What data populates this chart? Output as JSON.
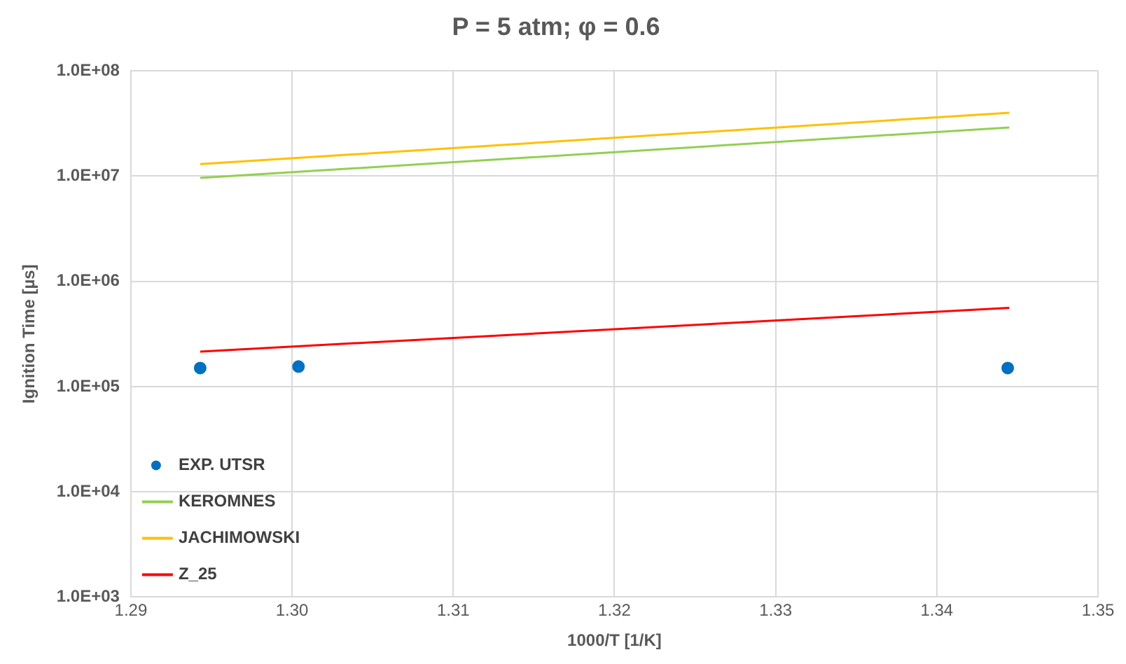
{
  "chart_data": {
    "type": "line",
    "title": "P = 5 atm; φ = 0.6",
    "xlabel": "1000/T [1/K]",
    "ylabel": "Ignition Time [µs]",
    "xlim": [
      1.29,
      1.35
    ],
    "xticks": [
      {
        "value": 1.29,
        "label": "1.29"
      },
      {
        "value": 1.3,
        "label": "1.30"
      },
      {
        "value": 1.31,
        "label": "1.31"
      },
      {
        "value": 1.32,
        "label": "1.32"
      },
      {
        "value": 1.33,
        "label": "1.33"
      },
      {
        "value": 1.34,
        "label": "1.34"
      },
      {
        "value": 1.35,
        "label": "1.35"
      }
    ],
    "ylim": [
      1000,
      100000000
    ],
    "yticks": [
      {
        "value": 1000,
        "label": "1.0E+03"
      },
      {
        "value": 10000,
        "label": "1.0E+04"
      },
      {
        "value": 100000,
        "label": "1.0E+05"
      },
      {
        "value": 1000000,
        "label": "1.0E+06"
      },
      {
        "value": 10000000,
        "label": "1.0E+07"
      },
      {
        "value": 100000000,
        "label": "1.0E+08"
      }
    ],
    "log": "y",
    "grid": true,
    "legend": "bottom left",
    "series": [
      {
        "name": "EXP. UTSR",
        "type": "scatter",
        "marker": "circle",
        "color": "#0070c0",
        "x": [
          1.2943,
          1.3004,
          1.3444
        ],
        "values": [
          150000,
          155000,
          150000
        ]
      },
      {
        "name": "KEROMNES",
        "type": "line",
        "marker": "none",
        "color": "#92d050",
        "x": [
          1.2943,
          1.3445
        ],
        "values": [
          9600000,
          29000000
        ]
      },
      {
        "name": "JACHIMOWSKI",
        "type": "line",
        "marker": "none",
        "color": "#ffc000",
        "x": [
          1.2943,
          1.3445
        ],
        "values": [
          13000000,
          40000000
        ]
      },
      {
        "name": "Z_25",
        "type": "line",
        "marker": "none",
        "color": "#ff0000",
        "x": [
          1.2943,
          1.3445
        ],
        "values": [
          215000,
          560000
        ]
      }
    ]
  }
}
